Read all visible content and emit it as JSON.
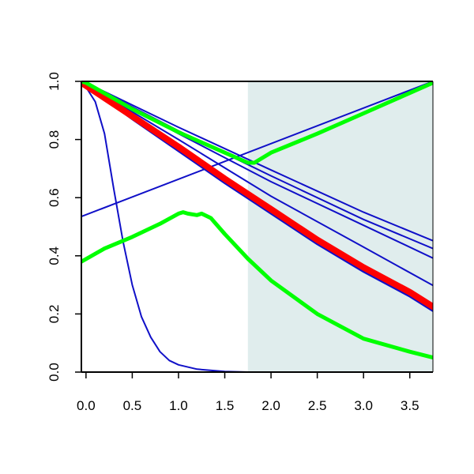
{
  "chart_data": {
    "type": "line",
    "title": "",
    "xlabel": "",
    "ylabel": "",
    "xlim": [
      -0.05,
      3.75
    ],
    "ylim": [
      0,
      1
    ],
    "grid": false,
    "x_ticks": [
      "0.0",
      "0.5",
      "1.0",
      "1.5",
      "2.0",
      "2.5",
      "3.0",
      "3.5"
    ],
    "y_ticks": [
      "0.0",
      "0.2",
      "0.4",
      "0.6",
      "0.8",
      "1.0"
    ],
    "shaded_region": {
      "x": [
        1.75,
        3.75
      ],
      "color": "#e0eded"
    },
    "colors": {
      "blue": "#1010c8",
      "red": "#ff0000",
      "green": "#00ff00"
    },
    "series": [
      {
        "color": "#1010c8",
        "width": 2,
        "points": [
          [
            -0.05,
            0.985
          ],
          [
            0.0,
            0.98
          ],
          [
            0.1,
            0.93
          ],
          [
            0.2,
            0.82
          ],
          [
            0.3,
            0.63
          ],
          [
            0.4,
            0.45
          ],
          [
            0.5,
            0.3
          ],
          [
            0.6,
            0.19
          ],
          [
            0.7,
            0.12
          ],
          [
            0.8,
            0.07
          ],
          [
            0.9,
            0.04
          ],
          [
            1.0,
            0.025
          ],
          [
            1.2,
            0.01
          ],
          [
            1.5,
            0.002
          ],
          [
            1.75,
            0.0
          ],
          [
            3.75,
            0.0
          ]
        ]
      },
      {
        "color": "#1010c8",
        "width": 2,
        "points": [
          [
            -0.05,
            0.535
          ],
          [
            3.75,
            1.0
          ]
        ]
      },
      {
        "color": "#1010c8",
        "width": 2,
        "points": [
          [
            -0.05,
            1.0
          ],
          [
            0.0,
            0.995
          ],
          [
            1.0,
            0.842
          ],
          [
            2.0,
            0.695
          ],
          [
            3.0,
            0.55
          ],
          [
            3.75,
            0.452
          ]
        ]
      },
      {
        "color": "#1010c8",
        "width": 2,
        "points": [
          [
            -0.05,
            1.0
          ],
          [
            0.0,
            0.994
          ],
          [
            1.0,
            0.83
          ],
          [
            2.0,
            0.675
          ],
          [
            3.0,
            0.525
          ],
          [
            3.75,
            0.425
          ]
        ]
      },
      {
        "color": "#1010c8",
        "width": 2,
        "points": [
          [
            -0.05,
            1.0
          ],
          [
            0.0,
            0.993
          ],
          [
            1.0,
            0.82
          ],
          [
            2.0,
            0.655
          ],
          [
            3.0,
            0.505
          ],
          [
            3.75,
            0.392
          ]
        ]
      },
      {
        "color": "#1010c8",
        "width": 2,
        "points": [
          [
            -0.05,
            1.0
          ],
          [
            0.0,
            0.99
          ],
          [
            1.0,
            0.8
          ],
          [
            2.0,
            0.605
          ],
          [
            3.0,
            0.43
          ],
          [
            3.75,
            0.298
          ]
        ]
      },
      {
        "color": "#1010c8",
        "width": 2.5,
        "points": [
          [
            -0.05,
            1.0
          ],
          [
            0.0,
            0.985
          ],
          [
            0.5,
            0.87
          ],
          [
            1.0,
            0.76
          ],
          [
            1.5,
            0.65
          ],
          [
            2.0,
            0.545
          ],
          [
            2.5,
            0.44
          ],
          [
            3.0,
            0.345
          ],
          [
            3.5,
            0.26
          ],
          [
            3.75,
            0.21
          ]
        ]
      },
      {
        "color": "#1010c8",
        "width": 2.5,
        "points": [
          [
            -0.05,
            1.0
          ],
          [
            0.0,
            0.985
          ],
          [
            0.5,
            0.875
          ],
          [
            1.0,
            0.765
          ],
          [
            1.5,
            0.655
          ],
          [
            2.0,
            0.552
          ],
          [
            2.5,
            0.448
          ],
          [
            3.0,
            0.352
          ],
          [
            3.5,
            0.268
          ],
          [
            3.75,
            0.22
          ]
        ]
      },
      {
        "color": "#ff0000",
        "width": 8,
        "points": [
          [
            -0.05,
            0.995
          ],
          [
            0.0,
            0.985
          ],
          [
            0.5,
            0.88
          ],
          [
            1.0,
            0.775
          ],
          [
            1.5,
            0.665
          ],
          [
            2.0,
            0.56
          ],
          [
            2.5,
            0.455
          ],
          [
            3.0,
            0.36
          ],
          [
            3.5,
            0.275
          ],
          [
            3.75,
            0.225
          ]
        ]
      },
      {
        "color": "#00ff00",
        "width": 5,
        "points": [
          [
            -0.05,
            1.0
          ],
          [
            0.0,
            0.995
          ],
          [
            0.5,
            0.905
          ],
          [
            1.0,
            0.825
          ],
          [
            1.5,
            0.755
          ],
          [
            1.75,
            0.72
          ],
          [
            1.82,
            0.72
          ],
          [
            2.0,
            0.755
          ],
          [
            2.5,
            0.82
          ],
          [
            3.0,
            0.89
          ],
          [
            3.5,
            0.96
          ],
          [
            3.75,
            0.995
          ]
        ]
      },
      {
        "color": "#00ff00",
        "width": 5,
        "points": [
          [
            -0.05,
            0.38
          ],
          [
            0.2,
            0.425
          ],
          [
            0.5,
            0.465
          ],
          [
            0.8,
            0.51
          ],
          [
            1.0,
            0.545
          ],
          [
            1.05,
            0.55
          ],
          [
            1.1,
            0.545
          ],
          [
            1.2,
            0.54
          ],
          [
            1.25,
            0.545
          ],
          [
            1.35,
            0.53
          ],
          [
            1.5,
            0.475
          ],
          [
            1.75,
            0.39
          ],
          [
            2.0,
            0.315
          ],
          [
            2.5,
            0.2
          ],
          [
            3.0,
            0.115
          ],
          [
            3.5,
            0.07
          ],
          [
            3.75,
            0.05
          ]
        ]
      }
    ]
  }
}
